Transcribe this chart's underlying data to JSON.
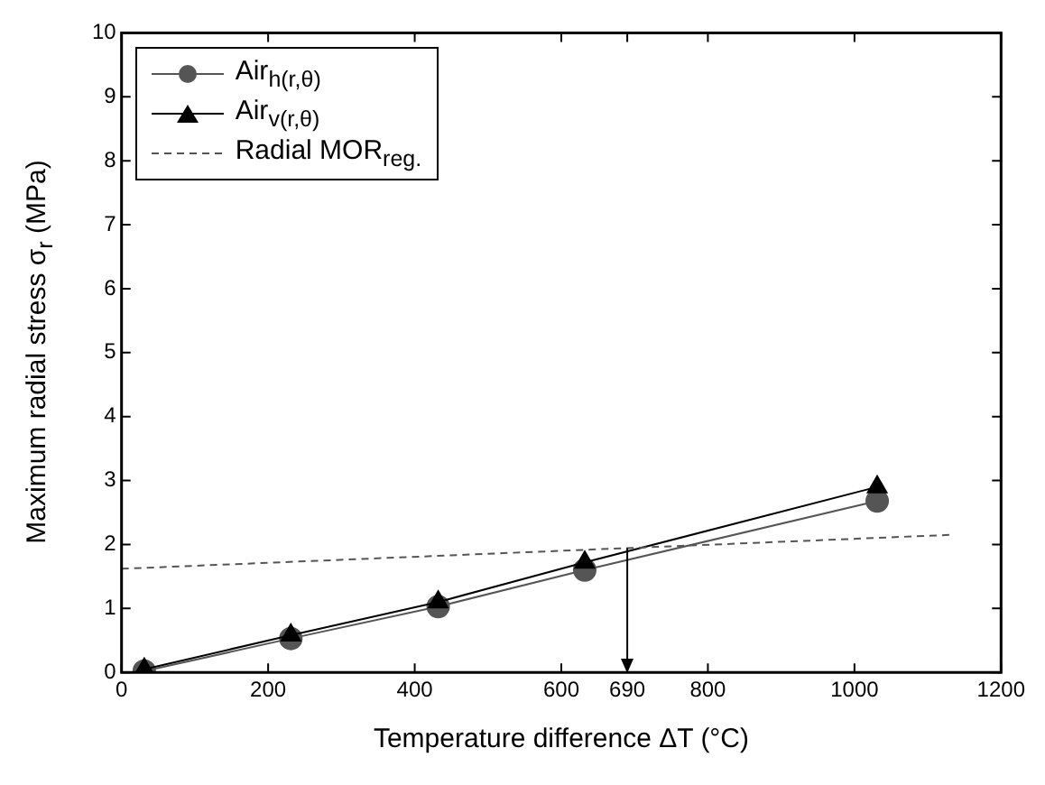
{
  "chart_data": {
    "type": "line",
    "xlabel": "Temperature difference ΔT (°C)",
    "ylabel": "Maximum radial stress σ$_{r}$ (MPa)",
    "xlim": [
      0,
      1200
    ],
    "xticks": [
      0,
      200,
      400,
      600,
      690,
      800,
      1000,
      1200
    ],
    "ylim": [
      0,
      10
    ],
    "yticks": [
      0,
      1,
      2,
      3,
      4,
      5,
      6,
      7,
      8,
      9,
      10
    ],
    "grid": false,
    "legend": "top left",
    "series": [
      {
        "name": "Air$_{h(r,θ)}$",
        "color": "#555555",
        "x": [
          31,
          231,
          432,
          632,
          1031
        ],
        "values": [
          0.02,
          0.53,
          1.03,
          1.6,
          2.68
        ],
        "marker": "circle",
        "line_style": "solid"
      },
      {
        "name": "Air$_{v(r,θ)}$",
        "color": "#000000",
        "x": [
          31,
          231,
          432,
          632,
          1031
        ],
        "values": [
          0.05,
          0.58,
          1.1,
          1.72,
          2.9
        ],
        "marker": "triangle",
        "line_style": "solid"
      },
      {
        "name": "Radial MOR$_{reg.}$",
        "color": "#555555",
        "x": [
          0,
          1130
        ],
        "values": [
          1.62,
          2.15
        ],
        "marker": "none",
        "line_style": "dashed"
      }
    ],
    "ref_lines": [
      {
        "axis": "x",
        "value": 690,
        "color": "#000000",
        "line_style": "solid"
      }
    ]
  }
}
